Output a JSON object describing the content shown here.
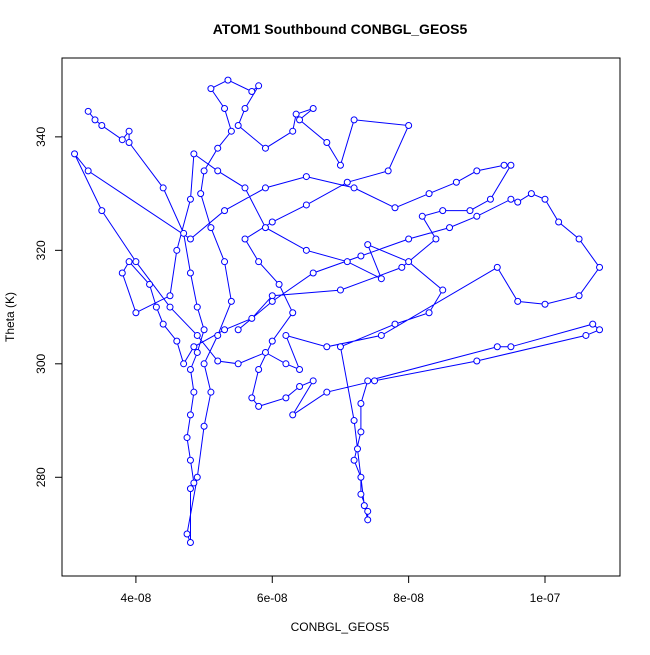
{
  "chart_data": {
    "type": "line",
    "marker": "circle",
    "title": "ATOM1 Southbound CONBGL_GEOS5",
    "x_label": "CONBGL_GEOS5",
    "y_label": "Theta (K)",
    "xlim": [
      2.916e-08,
      1.11e-07
    ],
    "ylim": [
      262.6,
      353.9
    ],
    "xticks": [
      {
        "value": 4e-08,
        "label": "4e-08"
      },
      {
        "value": 6e-08,
        "label": "6e-08"
      },
      {
        "value": 8e-08,
        "label": "8e-08"
      },
      {
        "value": 1e-07,
        "label": "1e-07"
      }
    ],
    "yticks": [
      280,
      300,
      320,
      340
    ],
    "series": [
      {
        "color": "#0000ff",
        "x": [
          3.3e-08,
          3.4e-08,
          3.5e-08,
          3.8e-08,
          3.9e-08,
          3.9e-08,
          4.4e-08,
          4.7e-08,
          4.8e-08,
          4.9e-08,
          5e-08,
          4.9e-08,
          4.8e-08,
          4.85e-08,
          4.8e-08,
          4.75e-08,
          4.8e-08,
          4.85e-08,
          4.8e-08,
          4.8e-08,
          4.75e-08,
          4.9e-08,
          5e-08,
          5.1e-08,
          5e-08,
          5.2e-08,
          5.4e-08,
          5.3e-08,
          5.1e-08,
          4.95e-08,
          5e-08,
          5.2e-08,
          5.4e-08,
          5.3e-08,
          5.1e-08,
          5.35e-08,
          5.7e-08,
          5.8e-08,
          5.6e-08,
          5.5e-08,
          5.9e-08,
          6.3e-08,
          6.35e-08,
          6.6e-08,
          6.4e-08,
          6.8e-08,
          7e-08,
          7.2e-08,
          8e-08,
          7.7e-08,
          7.1e-08,
          6.5e-08,
          6e-08,
          5.6e-08,
          5.8e-08,
          6.1e-08,
          6.3e-08,
          6e-08,
          5.8e-08,
          5.7e-08,
          5.8e-08,
          6.2e-08,
          6.4e-08,
          6.6e-08,
          6.3e-08,
          6.8e-08,
          7.5e-08,
          9e-08,
          1.06e-07,
          1.08e-07,
          1.07e-07,
          9.5e-08,
          9.3e-08,
          7.4e-08,
          7.3e-08,
          7.3e-08,
          7.2e-08,
          7.3e-08,
          7.3e-08,
          7.4e-08,
          7.4e-08,
          7.35e-08,
          7.25e-08,
          7.2e-08,
          7e-08,
          7.8e-08,
          8.3e-08,
          8.5e-08,
          8e-08,
          7.4e-08,
          7.6e-08,
          7.1e-08,
          6.5e-08,
          5.9e-08,
          5.6e-08,
          5.2e-08,
          4.85e-08,
          4.8e-08,
          4.6e-08,
          4.5e-08,
          4e-08,
          3.8e-08,
          3.9e-08,
          4.2e-08,
          4.3e-08,
          4.4e-08,
          4.6e-08,
          4.7e-08,
          4.85e-08,
          5.3e-08,
          5.7e-08,
          6e-08,
          7e-08,
          7.9e-08,
          8.4e-08,
          8.2e-08,
          8.5e-08,
          8.9e-08,
          9.2e-08,
          9.5e-08,
          9.4e-08,
          9e-08,
          8.7e-08,
          8.3e-08,
          7.8e-08,
          7.2e-08,
          6.5e-08,
          5.9e-08,
          5.3e-08,
          4.8e-08,
          3.3e-08,
          3.1e-08,
          3.5e-08,
          4e-08,
          4.5e-08,
          4.9e-08,
          5.2e-08,
          5.5e-08,
          5.9e-08,
          6.2e-08,
          6.4e-08,
          6.2e-08,
          6.8e-08,
          7.6e-08,
          9.3e-08,
          9.6e-08,
          1e-07,
          1.05e-07,
          1.08e-07,
          1.05e-07,
          1.02e-07,
          1e-07,
          9.8e-08,
          9.6e-08,
          9.5e-08,
          9e-08,
          8.6e-08,
          8e-08,
          7.3e-08,
          6.6e-08,
          6e-08,
          5.5e-08
        ],
        "values": [
          344.5,
          343,
          342,
          339.5,
          341,
          339,
          331,
          323,
          316,
          310,
          306,
          302,
          299,
          295,
          291,
          287,
          283,
          279,
          278,
          268.5,
          270,
          280,
          289,
          295,
          300,
          305,
          311,
          318,
          324,
          330,
          334,
          338,
          341,
          345,
          348.5,
          350,
          348,
          349,
          345,
          342,
          338,
          341,
          344,
          345,
          343,
          339,
          335,
          343,
          342,
          334,
          332,
          328,
          325,
          322,
          318,
          314,
          309,
          304,
          299,
          294,
          292.5,
          294,
          296,
          297,
          291,
          295,
          297,
          300.5,
          305,
          306,
          307,
          303,
          303,
          297,
          293,
          288,
          283,
          280,
          277,
          274,
          272.5,
          275,
          285,
          290,
          303,
          307,
          309,
          313,
          318,
          321,
          315,
          318,
          320,
          324,
          331,
          334,
          337,
          329,
          320,
          312,
          309,
          316,
          318,
          314,
          310,
          307,
          304,
          300,
          303,
          306,
          308,
          312,
          313,
          317,
          322,
          326,
          327,
          327,
          329,
          335,
          335,
          334,
          332,
          330,
          327.5,
          331,
          333,
          331,
          327,
          322,
          334,
          337,
          327,
          318,
          310,
          305,
          300.5,
          300,
          302,
          300,
          299,
          305,
          303,
          305,
          317,
          311,
          310.5,
          312,
          317,
          322,
          325,
          329,
          330,
          328.5,
          329,
          326,
          324,
          322,
          319,
          316,
          311,
          306
        ]
      }
    ]
  }
}
